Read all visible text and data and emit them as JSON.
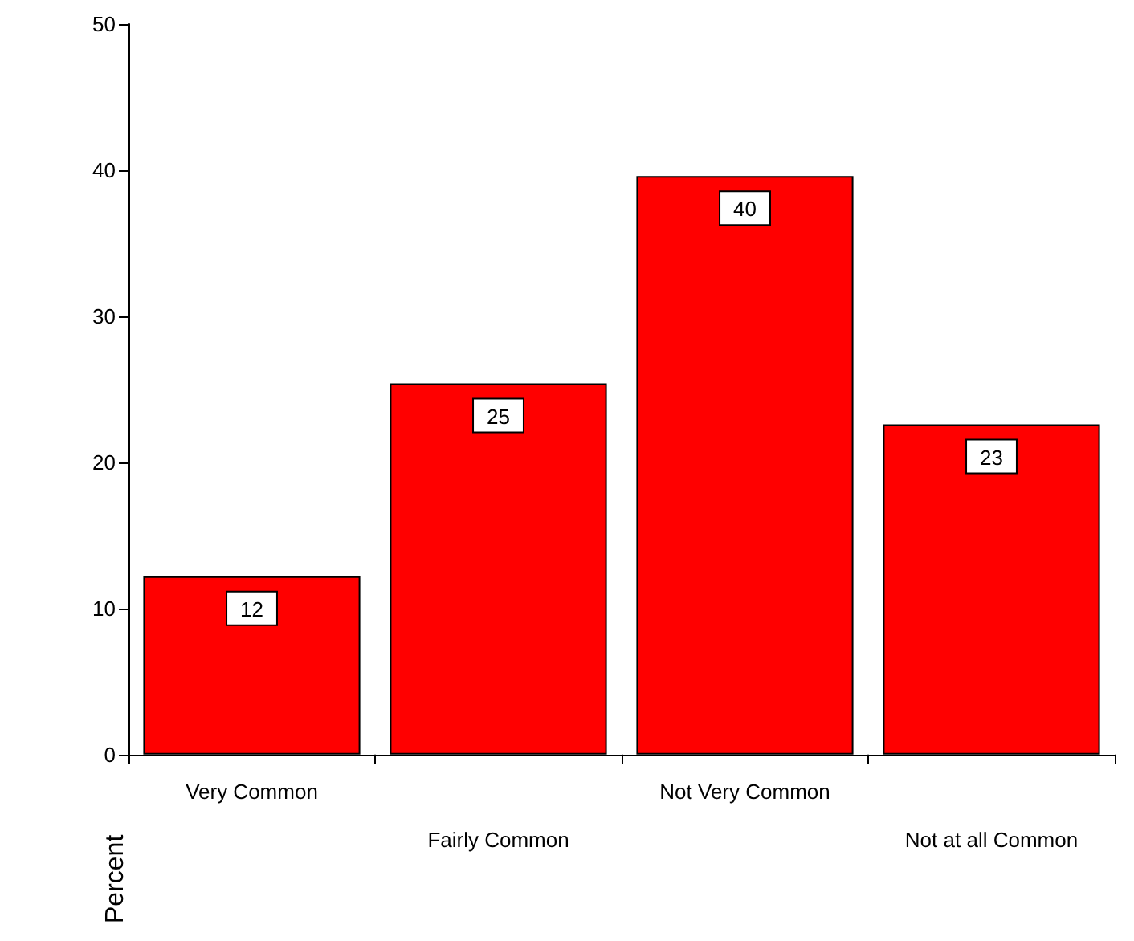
{
  "chart_data": {
    "type": "bar",
    "ylabel": "Percent",
    "categories": [
      "Very Common",
      "Fairly Common",
      "Not Very Common",
      "Not at all Common"
    ],
    "values": [
      12.2,
      25.4,
      39.6,
      22.6
    ],
    "value_labels": [
      "12",
      "25",
      "40",
      "23"
    ],
    "color": "#ff0000",
    "ylim": [
      0,
      50
    ],
    "yticks": [
      0,
      10,
      20,
      30,
      40,
      50
    ],
    "grid": false
  }
}
